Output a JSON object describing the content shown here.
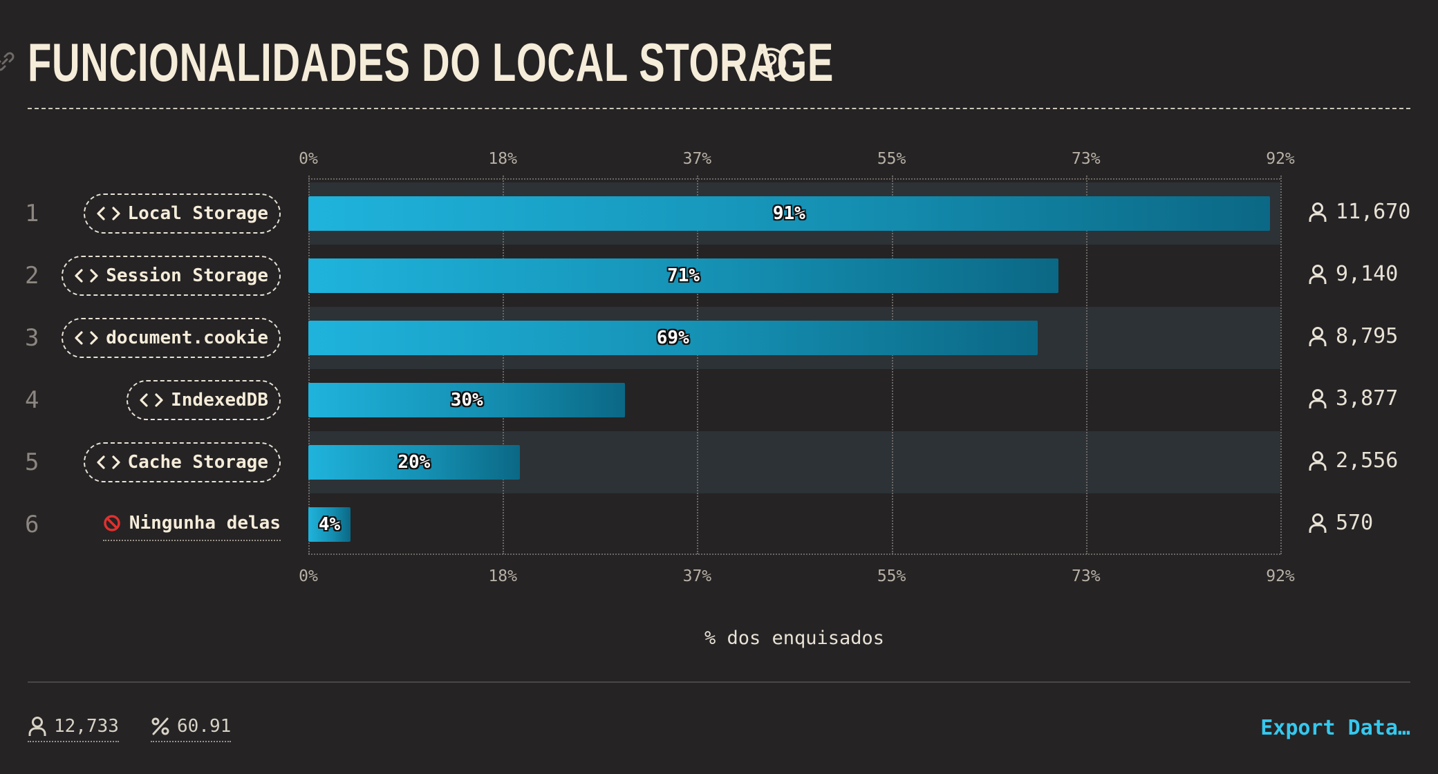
{
  "header": {
    "title": "FUNCIONALIDADES DO LOCAL STORAGE",
    "link_icon": "link-icon",
    "help_icon": "question-circle-icon"
  },
  "chart_data": {
    "type": "bar",
    "orientation": "horizontal",
    "categories": [
      "Local Storage",
      "Session Storage",
      "document.cookie",
      "IndexedDB",
      "Cache Storage",
      "Ningunha delas"
    ],
    "ranks": [
      "1",
      "2",
      "3",
      "4",
      "5",
      "6"
    ],
    "values": [
      91,
      71,
      69,
      30,
      20,
      4
    ],
    "value_labels": [
      "91%",
      "71%",
      "69%",
      "30%",
      "20%",
      "4%"
    ],
    "counts": [
      "11,670",
      "9,140",
      "8,795",
      "3,877",
      "2,556",
      "570"
    ],
    "tick_labels": [
      "0%",
      "18%",
      "37%",
      "55%",
      "73%",
      "92%"
    ],
    "xlim": [
      0,
      92
    ],
    "xlabel": "% dos enquisados",
    "grid": true,
    "bar_colors": [
      "#1fb3dc",
      "#0b6885"
    ],
    "category_icons": [
      "code-icon",
      "code-icon",
      "code-icon",
      "code-icon",
      "code-icon",
      "prohibited-icon"
    ]
  },
  "footer": {
    "respondents": "12,733",
    "percent": "60.91",
    "export_label": "Export Data…"
  }
}
